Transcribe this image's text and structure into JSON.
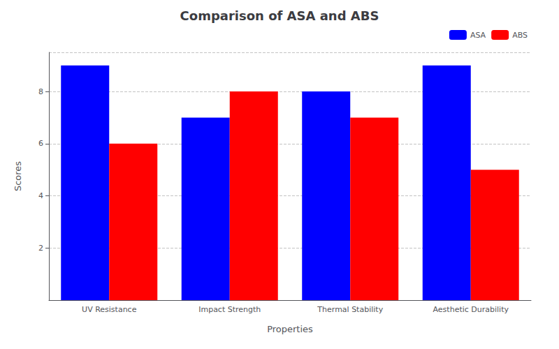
{
  "chart_data": {
    "type": "bar",
    "title": "Comparison of ASA and ABS",
    "xlabel": "Properties",
    "ylabel": "Scores",
    "categories": [
      "UV Resistance",
      "Impact Strength",
      "Thermal Stability",
      "Aesthetic Durability"
    ],
    "series": [
      {
        "name": "ASA",
        "color": "#0000ff",
        "values": [
          9,
          7,
          8,
          9
        ]
      },
      {
        "name": "ABS",
        "color": "#ff0000",
        "values": [
          6,
          8,
          7,
          5
        ]
      }
    ],
    "ylim": [
      0,
      9.5
    ],
    "yticks": [
      2,
      4,
      6,
      8
    ],
    "grid": true,
    "legend": "upper right"
  }
}
